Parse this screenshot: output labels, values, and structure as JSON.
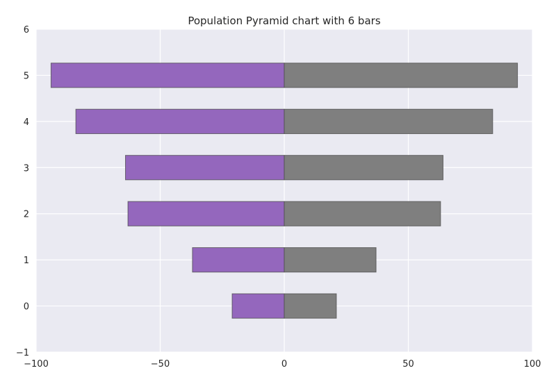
{
  "chart_data": {
    "type": "bar",
    "orientation": "horizontal",
    "subtype": "population-pyramid",
    "title": "Population Pyramid chart with 6 bars",
    "xlabel": "",
    "ylabel": "",
    "categories": [
      0,
      1,
      2,
      3,
      4,
      5
    ],
    "series": [
      {
        "values": [
          -21,
          -37,
          -63,
          -64,
          -84,
          -94
        ],
        "color": "#9467bd"
      },
      {
        "values": [
          21,
          37,
          63,
          64,
          84,
          94
        ],
        "color": "#7f7f7f"
      }
    ],
    "xlim": [
      -100,
      100
    ],
    "ylim": [
      -1,
      6
    ],
    "xticks": [
      -100,
      -50,
      0,
      50,
      100
    ],
    "xtick_labels": [
      "−100",
      "−50",
      "0",
      "50",
      "100"
    ],
    "yticks": [
      -1,
      0,
      1,
      2,
      3,
      4,
      5,
      6
    ],
    "ytick_labels": [
      "−1",
      "0",
      "1",
      "2",
      "3",
      "4",
      "5",
      "6"
    ],
    "grid": true,
    "legend": "none",
    "background": "#eaeaf2"
  }
}
